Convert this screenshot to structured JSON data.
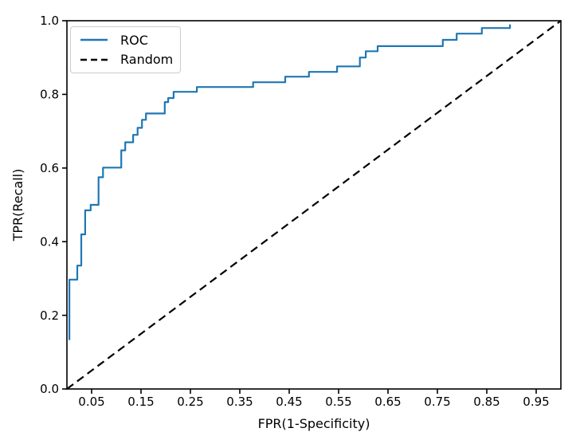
{
  "figure": {
    "background": "#ffffff",
    "axes_frame_color": "#000000"
  },
  "chart_data": {
    "type": "line",
    "title": "",
    "xlabel": "FPR(1-Specificity)",
    "ylabel": "TPR(Recall)",
    "xlim": [
      0.0,
      1.0
    ],
    "ylim": [
      0.0,
      1.0
    ],
    "grid": false,
    "legend_position": "upper-left",
    "x_ticks": [
      0.05,
      0.15,
      0.25,
      0.35,
      0.45,
      0.55,
      0.65,
      0.75,
      0.85,
      0.95
    ],
    "x_tick_labels": [
      "0.05",
      "0.15",
      "0.25",
      "0.35",
      "0.45",
      "0.55",
      "0.65",
      "0.75",
      "0.85",
      "0.95"
    ],
    "y_ticks": [
      0.0,
      0.2,
      0.4,
      0.6,
      0.8,
      1.0
    ],
    "y_tick_labels": [
      "0.0",
      "0.2",
      "0.4",
      "0.6",
      "0.8",
      "1.0"
    ],
    "series": [
      {
        "name": "ROC",
        "line_style": "solid",
        "color": "#1f77b4",
        "points": [
          [
            0.005,
            0.133
          ],
          [
            0.005,
            0.297
          ],
          [
            0.021,
            0.297
          ],
          [
            0.021,
            0.335
          ],
          [
            0.029,
            0.335
          ],
          [
            0.029,
            0.42
          ],
          [
            0.037,
            0.42
          ],
          [
            0.037,
            0.485
          ],
          [
            0.048,
            0.485
          ],
          [
            0.048,
            0.5
          ],
          [
            0.064,
            0.5
          ],
          [
            0.064,
            0.575
          ],
          [
            0.073,
            0.575
          ],
          [
            0.073,
            0.601
          ],
          [
            0.11,
            0.601
          ],
          [
            0.11,
            0.648
          ],
          [
            0.118,
            0.648
          ],
          [
            0.118,
            0.67
          ],
          [
            0.134,
            0.67
          ],
          [
            0.134,
            0.69
          ],
          [
            0.143,
            0.69
          ],
          [
            0.143,
            0.709
          ],
          [
            0.152,
            0.709
          ],
          [
            0.152,
            0.731
          ],
          [
            0.16,
            0.731
          ],
          [
            0.16,
            0.748
          ],
          [
            0.198,
            0.748
          ],
          [
            0.198,
            0.779
          ],
          [
            0.205,
            0.779
          ],
          [
            0.205,
            0.79
          ],
          [
            0.216,
            0.79
          ],
          [
            0.216,
            0.807
          ],
          [
            0.263,
            0.807
          ],
          [
            0.263,
            0.82
          ],
          [
            0.377,
            0.82
          ],
          [
            0.377,
            0.833
          ],
          [
            0.442,
            0.833
          ],
          [
            0.442,
            0.848
          ],
          [
            0.49,
            0.848
          ],
          [
            0.49,
            0.861
          ],
          [
            0.547,
            0.861
          ],
          [
            0.547,
            0.876
          ],
          [
            0.593,
            0.876
          ],
          [
            0.593,
            0.9
          ],
          [
            0.605,
            0.9
          ],
          [
            0.605,
            0.917
          ],
          [
            0.629,
            0.917
          ],
          [
            0.629,
            0.931
          ],
          [
            0.761,
            0.931
          ],
          [
            0.761,
            0.948
          ],
          [
            0.789,
            0.948
          ],
          [
            0.789,
            0.965
          ],
          [
            0.84,
            0.965
          ],
          [
            0.84,
            0.98
          ],
          [
            0.897,
            0.98
          ],
          [
            0.897,
            0.99
          ]
        ]
      },
      {
        "name": "Random",
        "line_style": "dashed",
        "color": "#000000",
        "points": [
          [
            0.0,
            0.0
          ],
          [
            1.0,
            1.0
          ]
        ]
      }
    ]
  }
}
